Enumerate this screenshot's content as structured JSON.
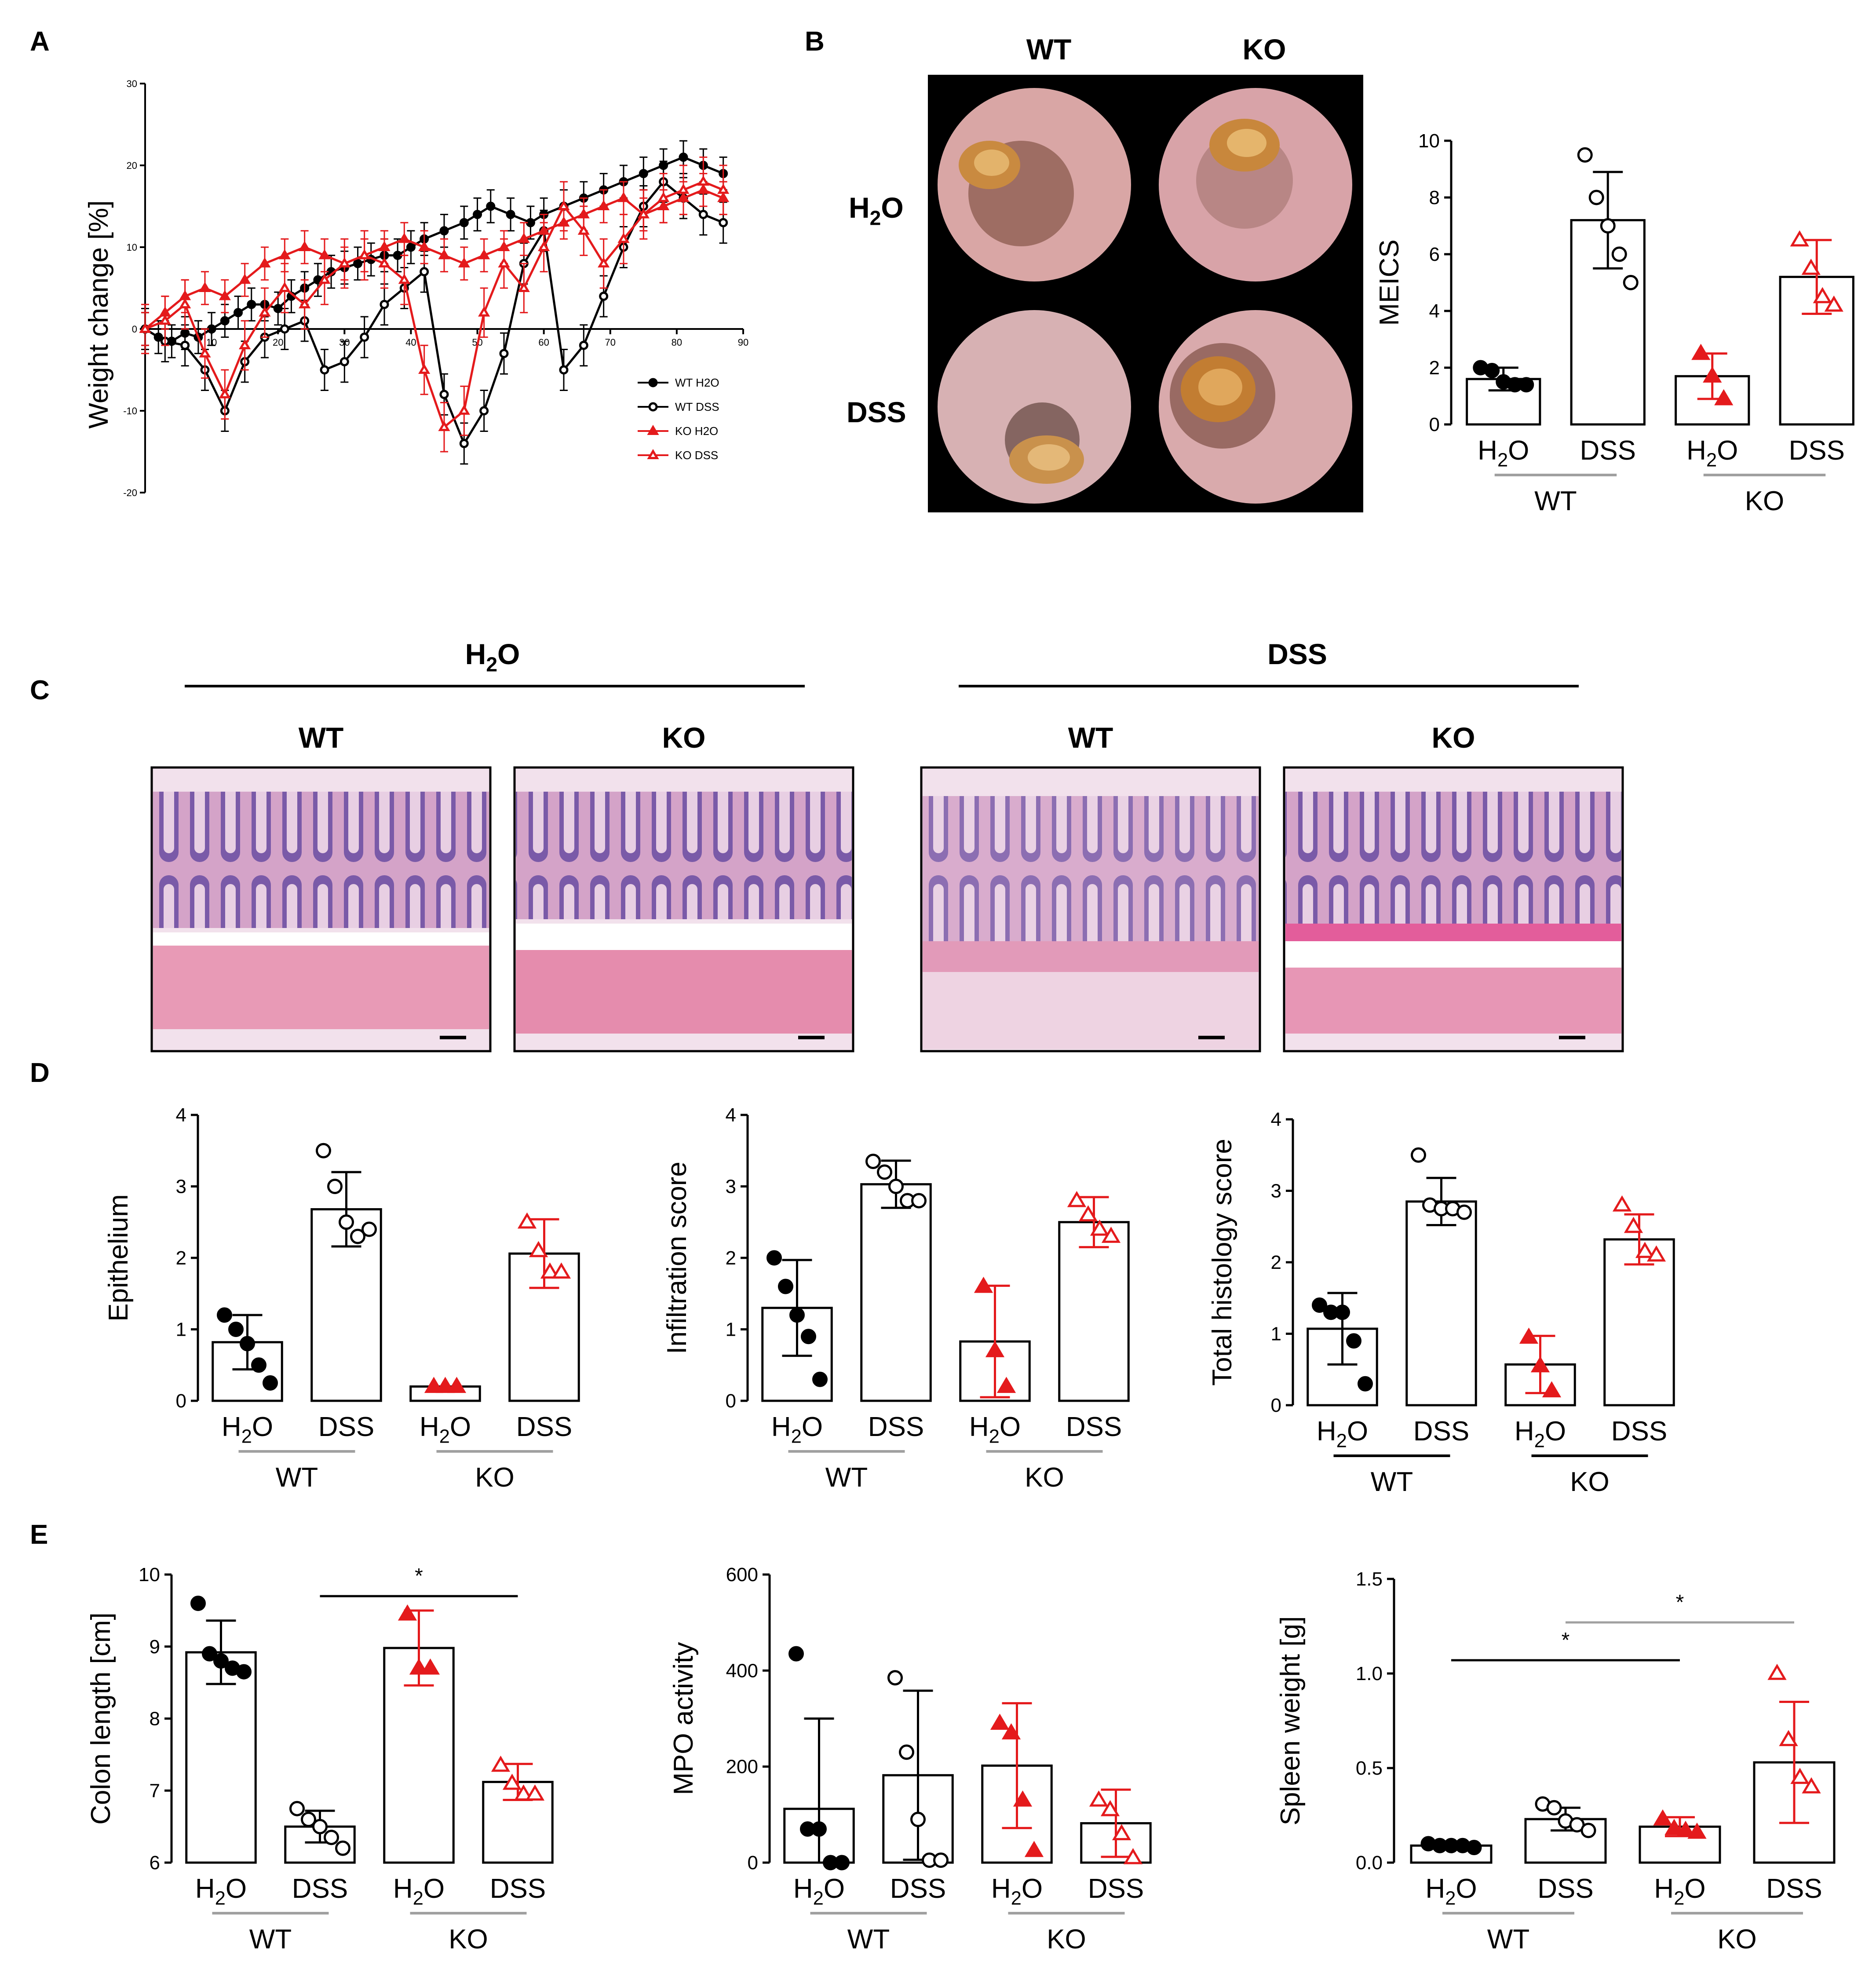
{
  "figure": {
    "panel_labels": [
      "A",
      "B",
      "C",
      "D",
      "E"
    ],
    "panel_b": {
      "col_labels": [
        "WT",
        "KO"
      ],
      "row_labels": [
        "H2O",
        "DSS"
      ]
    },
    "panel_c": {
      "group_labels": [
        "H2O",
        "DSS"
      ],
      "image_labels": [
        "WT",
        "KO",
        "WT",
        "KO"
      ]
    }
  },
  "colors": {
    "wt": "#000000",
    "ko": "#e41a1c",
    "divider": "#a0a0a0"
  },
  "chart_data": [
    {
      "id": "A",
      "type": "line",
      "title": "",
      "xlabel": "",
      "ylabel": "Weight change [%]",
      "xlim": [
        0,
        90
      ],
      "ylim": [
        -20,
        30
      ],
      "xticks": [
        10,
        20,
        30,
        40,
        50,
        60,
        70,
        80,
        90
      ],
      "yticks": [
        -20,
        -10,
        0,
        10,
        20,
        30
      ],
      "legend": [
        "WT H2O",
        "WT DSS",
        "KO H2O",
        "KO DSS"
      ],
      "series": [
        {
          "name": "WT H2O",
          "color": "#000000",
          "marker": "filled-circle",
          "x": [
            0,
            2,
            4,
            6,
            8,
            10,
            12,
            14,
            16,
            18,
            20,
            22,
            24,
            26,
            28,
            30,
            32,
            34,
            36,
            38,
            40,
            42,
            45,
            48,
            50,
            52,
            55,
            58,
            60,
            63,
            66,
            69,
            72,
            75,
            78,
            81,
            84,
            87
          ],
          "y": [
            0,
            -1,
            -1.5,
            -0.5,
            -1,
            0,
            1,
            2,
            3,
            3,
            2.5,
            4,
            5,
            6,
            7,
            7.5,
            8,
            8.5,
            9,
            9,
            10,
            11,
            12,
            13,
            14,
            15,
            14,
            13,
            14,
            15,
            16,
            17,
            18,
            19,
            20,
            21,
            20,
            19
          ],
          "err": 2
        },
        {
          "name": "WT DSS",
          "color": "#000000",
          "marker": "open-circle",
          "x": [
            0,
            3,
            6,
            9,
            12,
            15,
            18,
            21,
            24,
            27,
            30,
            33,
            36,
            39,
            42,
            45,
            48,
            51,
            54,
            57,
            60,
            63,
            66,
            69,
            72,
            75,
            78,
            81,
            84,
            87
          ],
          "y": [
            0,
            -1.5,
            -2,
            -5,
            -10,
            -4,
            -1,
            0,
            1,
            -5,
            -4,
            -1,
            3,
            5,
            7,
            -8,
            -14,
            -10,
            -3,
            8,
            12,
            -5,
            -2,
            4,
            10,
            15,
            18,
            16,
            14,
            13
          ],
          "err": 2.5
        },
        {
          "name": "KO H2O",
          "color": "#e41a1c",
          "marker": "filled-triangle",
          "x": [
            0,
            3,
            6,
            9,
            12,
            15,
            18,
            21,
            24,
            27,
            30,
            33,
            36,
            39,
            42,
            45,
            48,
            51,
            54,
            57,
            60,
            63,
            66,
            69,
            72,
            75,
            78,
            81,
            84,
            87
          ],
          "y": [
            0,
            2,
            4,
            5,
            4,
            6,
            8,
            9,
            10,
            9,
            8,
            9,
            10,
            11,
            10,
            9,
            8,
            9,
            10,
            11,
            12,
            13,
            14,
            15,
            16,
            14,
            15,
            16,
            17,
            16
          ],
          "err": 2
        },
        {
          "name": "KO DSS",
          "color": "#e41a1c",
          "marker": "open-triangle",
          "x": [
            0,
            3,
            6,
            9,
            12,
            15,
            18,
            21,
            24,
            27,
            30,
            33,
            36,
            39,
            42,
            45,
            48,
            51,
            54,
            57,
            60,
            63,
            66,
            69,
            72,
            75,
            78,
            81,
            84,
            87
          ],
          "y": [
            0,
            1,
            3,
            -3,
            -8,
            -2,
            2,
            5,
            3,
            6,
            8,
            9,
            8,
            6,
            -5,
            -12,
            -10,
            2,
            8,
            5,
            10,
            15,
            12,
            8,
            11,
            14,
            16,
            17,
            18,
            17
          ],
          "err": 3
        }
      ]
    },
    {
      "id": "B",
      "type": "bar",
      "ylabel": "MEICS",
      "ylim": [
        0,
        10
      ],
      "yticks": [
        0,
        2,
        4,
        6,
        8,
        10
      ],
      "categories": [
        "H2O",
        "DSS",
        "H2O",
        "DSS"
      ],
      "groups": [
        "WT",
        "KO"
      ],
      "values": [
        1.6,
        7.2,
        1.7,
        5.2
      ],
      "errors": [
        0.4,
        1.7,
        0.8,
        1.3
      ],
      "points": [
        [
          2.0,
          1.9,
          1.5,
          1.4,
          1.4
        ],
        [
          9.5,
          8.0,
          7.0,
          6.0,
          5.0
        ],
        [
          2.5,
          1.7,
          0.9
        ],
        [
          6.5,
          5.5,
          4.5,
          4.2
        ]
      ]
    },
    {
      "id": "D1",
      "type": "bar",
      "ylabel": "Epithelium",
      "ylim": [
        0,
        4
      ],
      "yticks": [
        0,
        1,
        2,
        3,
        4
      ],
      "categories": [
        "H2O",
        "DSS",
        "H2O",
        "DSS"
      ],
      "groups": [
        "WT",
        "KO"
      ],
      "values": [
        0.82,
        2.68,
        0.2,
        2.06
      ],
      "errors": [
        0.38,
        0.52,
        0,
        0.48
      ],
      "points": [
        [
          1.2,
          1.0,
          0.8,
          0.5,
          0.25
        ],
        [
          3.5,
          3.0,
          2.5,
          2.3,
          2.4
        ],
        [
          0.2,
          0.2,
          0.2
        ],
        [
          2.5,
          2.1,
          1.8,
          1.8
        ]
      ]
    },
    {
      "id": "D2",
      "type": "bar",
      "ylabel": "Infiltration score",
      "ylim": [
        0,
        4
      ],
      "yticks": [
        0,
        1,
        2,
        3,
        4
      ],
      "categories": [
        "H2O",
        "DSS",
        "H2O",
        "DSS"
      ],
      "groups": [
        "WT",
        "KO"
      ],
      "values": [
        1.3,
        3.03,
        0.83,
        2.5
      ],
      "errors": [
        0.67,
        0.33,
        0.78,
        0.35
      ],
      "points": [
        [
          2.0,
          1.6,
          1.2,
          0.9,
          0.3
        ],
        [
          3.35,
          3.2,
          3.0,
          2.8,
          2.8
        ],
        [
          1.6,
          0.7,
          0.2
        ],
        [
          2.8,
          2.6,
          2.4,
          2.3
        ]
      ]
    },
    {
      "id": "D3",
      "type": "bar",
      "ylabel": "Total histology score",
      "ylim": [
        0,
        4
      ],
      "yticks": [
        0,
        1,
        2,
        3,
        4
      ],
      "categories": [
        "H2O",
        "DSS",
        "H2O",
        "DSS"
      ],
      "groups": [
        "WT",
        "KO"
      ],
      "values": [
        1.07,
        2.85,
        0.57,
        2.32
      ],
      "errors": [
        0.5,
        0.33,
        0.4,
        0.35
      ],
      "points": [
        [
          1.4,
          1.3,
          1.3,
          0.9,
          0.3
        ],
        [
          3.5,
          2.8,
          2.75,
          2.75,
          2.7
        ],
        [
          0.95,
          0.55,
          0.2
        ],
        [
          2.8,
          2.5,
          2.15,
          2.1
        ]
      ]
    },
    {
      "id": "E1",
      "type": "bar",
      "ylabel": "Colon length [cm]",
      "ylim": [
        6,
        10
      ],
      "yticks": [
        6,
        7,
        8,
        9,
        10
      ],
      "categories": [
        "H2O",
        "DSS",
        "H2O",
        "DSS"
      ],
      "groups": [
        "WT",
        "KO"
      ],
      "values": [
        8.92,
        6.5,
        8.98,
        7.12
      ],
      "errors": [
        0.44,
        0.22,
        0.52,
        0.25
      ],
      "points": [
        [
          9.6,
          8.9,
          8.8,
          8.7,
          8.65
        ],
        [
          6.75,
          6.6,
          6.5,
          6.35,
          6.2
        ],
        [
          9.45,
          8.7,
          8.7
        ],
        [
          7.35,
          7.1,
          6.95,
          6.95
        ]
      ],
      "significance": [
        {
          "from": 1,
          "to": 3,
          "label": "*",
          "color": "#000000",
          "level": 9.7
        }
      ]
    },
    {
      "id": "E2",
      "type": "bar",
      "ylabel": "MPO activity",
      "ylim": [
        0,
        600
      ],
      "yticks": [
        0,
        200,
        400,
        600
      ],
      "categories": [
        "H2O",
        "DSS",
        "H2O",
        "DSS"
      ],
      "groups": [
        "WT",
        "KO"
      ],
      "values": [
        112,
        182,
        202,
        82
      ],
      "errors": [
        188,
        176,
        130,
        70
      ],
      "points": [
        [
          435,
          70,
          70,
          0,
          0
        ],
        [
          385,
          230,
          90,
          5,
          5
        ],
        [
          290,
          270,
          130,
          25
        ],
        [
          130,
          110,
          60,
          10
        ]
      ]
    },
    {
      "id": "E3",
      "type": "bar",
      "ylabel": "Spleen weight [g]",
      "ylim": [
        0,
        1.5
      ],
      "yticks": [
        0,
        0.5,
        1.0,
        1.5
      ],
      "ytick_labels": [
        "0.0",
        "0.5",
        "1.0",
        "1.5"
      ],
      "categories": [
        "H2O",
        "DSS",
        "H2O",
        "DSS"
      ],
      "groups": [
        "WT",
        "KO"
      ],
      "values": [
        0.09,
        0.23,
        0.19,
        0.53
      ],
      "errors": [
        0.01,
        0.06,
        0.05,
        0.32
      ],
      "points": [
        [
          0.1,
          0.09,
          0.09,
          0.09,
          0.08
        ],
        [
          0.31,
          0.29,
          0.22,
          0.2,
          0.17
        ],
        [
          0.23,
          0.18,
          0.17,
          0.16
        ],
        [
          1.0,
          0.65,
          0.45,
          0.4
        ]
      ],
      "significance": [
        {
          "from": 0,
          "to": 2,
          "label": "*",
          "color": "#000000",
          "level": 1.07
        },
        {
          "from": 1,
          "to": 3,
          "label": "*",
          "color": "#a0a0a0",
          "level": 1.27
        }
      ]
    }
  ]
}
